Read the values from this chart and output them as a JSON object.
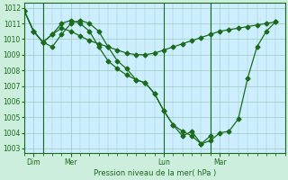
{
  "title": "Pression niveau de la mer( hPa )",
  "ylim": [
    1003,
    1012
  ],
  "yticks": [
    1003,
    1004,
    1005,
    1006,
    1007,
    1008,
    1009,
    1010,
    1011,
    1012
  ],
  "background_color": "#cceedd",
  "plot_bg_color": "#cceeff",
  "grid_color": "#99ccbb",
  "line_color": "#1a6b1a",
  "marker_color": "#1a6b1a",
  "day_labels": [
    "Dim",
    "Mer",
    "Lun",
    "Mar"
  ],
  "day_positions": [
    0.5,
    2.5,
    7.5,
    10.5
  ],
  "vline_positions": [
    1.0,
    7.5,
    10.0
  ],
  "xlim": [
    0,
    14
  ],
  "series1_x": [
    0,
    0.5,
    1.0,
    1.5,
    2.0,
    2.5,
    3.0,
    3.5,
    4.0,
    4.5,
    5.0,
    5.5,
    6.0,
    6.5,
    7.0,
    7.5,
    8.0,
    8.5,
    9.0,
    9.5,
    10.0,
    10.5,
    11.0,
    11.5,
    12.0,
    12.5,
    13.0,
    13.5
  ],
  "series1_y": [
    1011.8,
    1010.5,
    1009.8,
    1010.3,
    1010.7,
    1010.5,
    1010.2,
    1009.9,
    1009.7,
    1009.5,
    1009.3,
    1009.1,
    1009.0,
    1009.0,
    1009.1,
    1009.3,
    1009.5,
    1009.7,
    1009.9,
    1010.1,
    1010.3,
    1010.5,
    1010.6,
    1010.7,
    1010.8,
    1010.9,
    1011.0,
    1011.1
  ],
  "series2_x": [
    0,
    0.5,
    1.0,
    1.5,
    2.0,
    2.5,
    3.0,
    3.5,
    4.0,
    4.5,
    5.0,
    5.5,
    6.0,
    6.5,
    7.0,
    7.5,
    8.0,
    8.5,
    9.0,
    9.5,
    10.0,
    10.5,
    11.0,
    11.5,
    12.0,
    12.5,
    13.0,
    13.5
  ],
  "series2_y": [
    1011.8,
    1010.5,
    1009.8,
    1010.3,
    1011.0,
    1011.2,
    1011.0,
    1010.5,
    1009.5,
    1008.6,
    1008.1,
    1007.7,
    1007.4,
    1007.2,
    1006.5,
    1005.4,
    1004.5,
    1004.1,
    1003.8,
    1003.3,
    1003.5,
    1004.0,
    1004.1,
    1004.9,
    1007.5,
    1009.5,
    1010.5,
    1011.1
  ],
  "series3_x": [
    0,
    0.5,
    1.0,
    1.5,
    2.0,
    2.5,
    3.0,
    3.5,
    4.0,
    4.5,
    5.0,
    5.5,
    6.0,
    6.5,
    7.0,
    7.5,
    8.0,
    8.5,
    9.0,
    9.5,
    10.0
  ],
  "series3_y": [
    1011.8,
    1010.5,
    1009.8,
    1009.5,
    1010.3,
    1011.0,
    1011.2,
    1011.0,
    1010.5,
    1009.5,
    1008.6,
    1008.1,
    1007.4,
    1007.2,
    1006.5,
    1005.4,
    1004.5,
    1003.8,
    1004.1,
    1003.3,
    1003.8
  ]
}
